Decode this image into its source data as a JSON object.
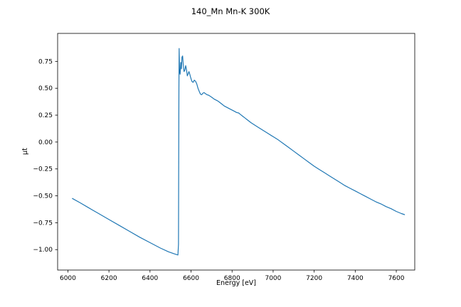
{
  "chart_data": {
    "type": "line",
    "title": "140_Mn Mn-K 300K",
    "xlabel": "Energy [eV]",
    "ylabel": "μt",
    "xlim": [
      5950,
      7690
    ],
    "ylim": [
      -1.19,
      1.01
    ],
    "xticks": [
      6000,
      6200,
      6400,
      6600,
      6800,
      7000,
      7200,
      7400,
      7600
    ],
    "yticks": [
      -1.0,
      -0.75,
      -0.5,
      -0.25,
      0.0,
      0.25,
      0.5,
      0.75
    ],
    "grid": false,
    "legend": null,
    "line_color": "#1f77b4",
    "series": [
      {
        "name": "mu_t",
        "points": [
          [
            6022,
            -0.525
          ],
          [
            6060,
            -0.565
          ],
          [
            6100,
            -0.61
          ],
          [
            6150,
            -0.665
          ],
          [
            6200,
            -0.72
          ],
          [
            6250,
            -0.775
          ],
          [
            6300,
            -0.83
          ],
          [
            6350,
            -0.885
          ],
          [
            6400,
            -0.935
          ],
          [
            6450,
            -0.985
          ],
          [
            6490,
            -1.02
          ],
          [
            6520,
            -1.04
          ],
          [
            6536,
            -1.05
          ],
          [
            6539,
            -0.95
          ],
          [
            6540,
            -0.2
          ],
          [
            6541,
            0.5
          ],
          [
            6542,
            0.87
          ],
          [
            6544,
            0.66
          ],
          [
            6547,
            0.63
          ],
          [
            6550,
            0.74
          ],
          [
            6553,
            0.68
          ],
          [
            6556,
            0.79
          ],
          [
            6559,
            0.8
          ],
          [
            6562,
            0.72
          ],
          [
            6566,
            0.655
          ],
          [
            6570,
            0.67
          ],
          [
            6574,
            0.71
          ],
          [
            6578,
            0.67
          ],
          [
            6582,
            0.615
          ],
          [
            6586,
            0.635
          ],
          [
            6590,
            0.655
          ],
          [
            6594,
            0.63
          ],
          [
            6598,
            0.6
          ],
          [
            6604,
            0.565
          ],
          [
            6610,
            0.555
          ],
          [
            6616,
            0.575
          ],
          [
            6622,
            0.565
          ],
          [
            6628,
            0.54
          ],
          [
            6634,
            0.5
          ],
          [
            6640,
            0.47
          ],
          [
            6646,
            0.445
          ],
          [
            6652,
            0.44
          ],
          [
            6658,
            0.455
          ],
          [
            6664,
            0.46
          ],
          [
            6670,
            0.45
          ],
          [
            6678,
            0.44
          ],
          [
            6686,
            0.435
          ],
          [
            6694,
            0.425
          ],
          [
            6702,
            0.415
          ],
          [
            6712,
            0.4
          ],
          [
            6722,
            0.39
          ],
          [
            6732,
            0.38
          ],
          [
            6742,
            0.365
          ],
          [
            6752,
            0.35
          ],
          [
            6762,
            0.335
          ],
          [
            6772,
            0.325
          ],
          [
            6782,
            0.315
          ],
          [
            6792,
            0.305
          ],
          [
            6802,
            0.295
          ],
          [
            6812,
            0.285
          ],
          [
            6822,
            0.275
          ],
          [
            6832,
            0.27
          ],
          [
            6842,
            0.255
          ],
          [
            6852,
            0.24
          ],
          [
            6862,
            0.225
          ],
          [
            6872,
            0.21
          ],
          [
            6882,
            0.195
          ],
          [
            6892,
            0.18
          ],
          [
            6900,
            0.17
          ],
          [
            6925,
            0.14
          ],
          [
            6950,
            0.11
          ],
          [
            6975,
            0.08
          ],
          [
            7000,
            0.05
          ],
          [
            7025,
            0.02
          ],
          [
            7050,
            -0.015
          ],
          [
            7075,
            -0.05
          ],
          [
            7100,
            -0.085
          ],
          [
            7125,
            -0.12
          ],
          [
            7150,
            -0.155
          ],
          [
            7175,
            -0.19
          ],
          [
            7200,
            -0.225
          ],
          [
            7225,
            -0.255
          ],
          [
            7250,
            -0.285
          ],
          [
            7275,
            -0.315
          ],
          [
            7300,
            -0.345
          ],
          [
            7325,
            -0.375
          ],
          [
            7350,
            -0.405
          ],
          [
            7375,
            -0.43
          ],
          [
            7400,
            -0.455
          ],
          [
            7425,
            -0.48
          ],
          [
            7450,
            -0.505
          ],
          [
            7475,
            -0.53
          ],
          [
            7500,
            -0.555
          ],
          [
            7525,
            -0.575
          ],
          [
            7550,
            -0.6
          ],
          [
            7575,
            -0.62
          ],
          [
            7600,
            -0.645
          ],
          [
            7625,
            -0.665
          ],
          [
            7640,
            -0.675
          ]
        ]
      }
    ]
  }
}
